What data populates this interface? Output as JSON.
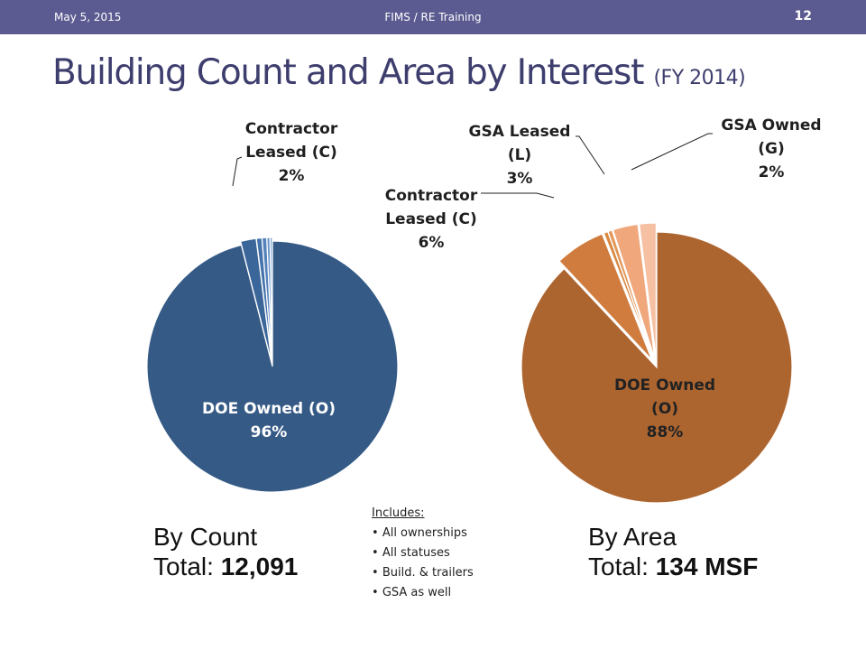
{
  "header": {
    "date": "May 5, 2015",
    "center": "FIMS / RE Training",
    "page_number": "12"
  },
  "title": {
    "main": "Building Count and Area by Interest",
    "sub": "(FY 2014)"
  },
  "chart_data": [
    {
      "type": "pie",
      "caption": "By Count",
      "total_label": "Total:",
      "total_value": "12,091",
      "slices": [
        {
          "name": "DOE Owned (O)",
          "value": 96,
          "label_lines": [
            "DOE Owned (O)",
            "96%"
          ],
          "color": "#355a86"
        },
        {
          "name": "Contractor Leased (C)",
          "value": 2,
          "label_lines": [
            "Contractor",
            "Leased (C)",
            "2%"
          ],
          "color": "#3a6699"
        },
        {
          "name": "",
          "value": 0.7,
          "color": "#4472aa"
        },
        {
          "name": "",
          "value": 0.6,
          "color": "#5582bb"
        },
        {
          "name": "",
          "value": 0.4,
          "color": "#6a94c8"
        },
        {
          "name": "",
          "value": 0.3,
          "color": "#84aad6"
        }
      ]
    },
    {
      "type": "pie",
      "caption": "By Area",
      "total_label": "Total:",
      "total_value": "134 MSF",
      "slices": [
        {
          "name": "DOE Owned (O)",
          "value": 88,
          "label_lines": [
            "DOE Owned",
            "(O)",
            "88%"
          ],
          "color": "#ad6530"
        },
        {
          "name": "Contractor Leased (C)",
          "value": 6,
          "label_lines": [
            "Contractor",
            "Leased (C)",
            "6%"
          ],
          "color": "#cf7c3e"
        },
        {
          "name": "",
          "value": 0.5,
          "color": "#d9883f"
        },
        {
          "name": "",
          "value": 0.5,
          "color": "#e29658"
        },
        {
          "name": "GSA Leased (L)",
          "value": 3,
          "label_lines": [
            "GSA Leased",
            "(L)",
            "3%"
          ],
          "color": "#f0a77c"
        },
        {
          "name": "GSA Owned (G)",
          "value": 2,
          "label_lines": [
            "GSA Owned",
            "(G)",
            "2%"
          ],
          "color": "#f6c0a2"
        }
      ]
    }
  ],
  "includes": {
    "header": "Includes:",
    "items": [
      "All ownerships",
      "All statuses",
      "Build. & trailers",
      "GSA as well"
    ]
  }
}
